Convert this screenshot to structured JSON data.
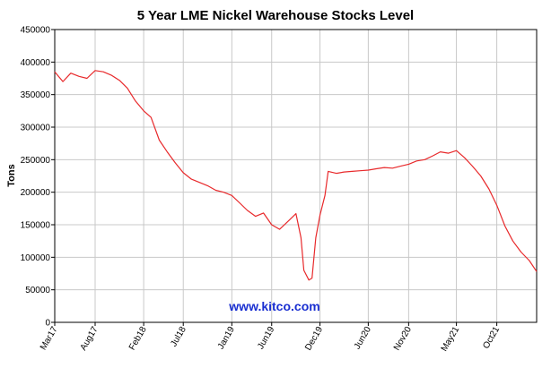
{
  "chart_data": {
    "type": "line",
    "title": "5 Year LME Nickel Warehouse Stocks Level",
    "xlabel": "",
    "ylabel": "Tons",
    "ylim": [
      0,
      450000
    ],
    "yticks": [
      0,
      50000,
      100000,
      150000,
      200000,
      250000,
      300000,
      350000,
      400000,
      450000
    ],
    "ytick_labels": [
      "0",
      "50000",
      "100000",
      "150000",
      "200000",
      "250000",
      "300000",
      "350000",
      "400000",
      "450000"
    ],
    "x_tick_labels": [
      "Mar17",
      "Aug17",
      "Feb18",
      "Jul18",
      "Jan19",
      "Jun19",
      "Dec19",
      "Jun20",
      "Nov20",
      "May21",
      "Oct21"
    ],
    "x_tick_dates": [
      "2017-03",
      "2017-08",
      "2018-02",
      "2018-07",
      "2019-01",
      "2019-06",
      "2019-12",
      "2020-06",
      "2020-11",
      "2021-05",
      "2021-10"
    ],
    "xlim": [
      "2017-03",
      "2022-03"
    ],
    "grid": true,
    "line_color": "#e8292b",
    "series": [
      {
        "x": [
          "2017-03",
          "2017-04",
          "2017-05",
          "2017-06",
          "2017-07",
          "2017-08",
          "2017-09",
          "2017-10",
          "2017-11",
          "2017-12",
          "2018-01",
          "2018-02",
          "2018-03",
          "2018-04",
          "2018-05",
          "2018-06",
          "2018-07",
          "2018-08",
          "2018-09",
          "2018-10",
          "2018-11",
          "2018-12",
          "2019-01",
          "2019-02",
          "2019-03",
          "2019-04",
          "2019-05",
          "2019-06",
          "2019-07",
          "2019-08",
          "2019-09",
          "2019-09-20",
          "2019-10",
          "2019-10-20",
          "2019-11",
          "2019-11-15",
          "2019-12",
          "2019-12-20",
          "2020-01",
          "2020-02",
          "2020-03",
          "2020-04",
          "2020-05",
          "2020-06",
          "2020-07",
          "2020-08",
          "2020-09",
          "2020-10",
          "2020-11",
          "2020-12",
          "2021-01",
          "2021-02",
          "2021-03",
          "2021-04",
          "2021-05",
          "2021-06",
          "2021-07",
          "2021-08",
          "2021-09",
          "2021-10",
          "2021-11",
          "2021-12",
          "2022-01",
          "2022-02",
          "2022-03"
        ],
        "y": [
          385000,
          370000,
          383000,
          378000,
          375000,
          387000,
          385000,
          380000,
          372000,
          360000,
          340000,
          325000,
          315000,
          280000,
          262000,
          245000,
          230000,
          220000,
          215000,
          210000,
          203000,
          200000,
          195000,
          183000,
          172000,
          163000,
          168000,
          150000,
          143000,
          155000,
          167000,
          130000,
          80000,
          65000,
          68000,
          130000,
          165000,
          195000,
          232000,
          229000,
          231000,
          232000,
          233000,
          234000,
          236000,
          238000,
          237000,
          240000,
          243000,
          248000,
          250000,
          256000,
          262000,
          260000,
          264000,
          253000,
          240000,
          225000,
          205000,
          180000,
          148000,
          125000,
          108000,
          95000,
          78000
        ]
      }
    ]
  },
  "watermark": "www.kitco.com"
}
